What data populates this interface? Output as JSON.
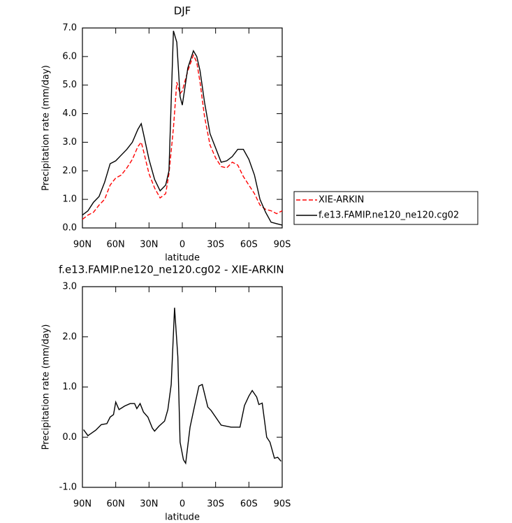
{
  "chart_data": [
    {
      "type": "line",
      "title": "DJF",
      "xlabel": "latitude",
      "ylabel": "Precipitation rate (mm/day)",
      "x": [
        90,
        85,
        80,
        75,
        70,
        65,
        60,
        55,
        50,
        45,
        40,
        37,
        35,
        30,
        25,
        20,
        15,
        12,
        8,
        5,
        2,
        0,
        -5,
        -10,
        -13,
        -16,
        -20,
        -25,
        -30,
        -35,
        -40,
        -45,
        -50,
        -55,
        -60,
        -65,
        -70,
        -75,
        -80,
        -85,
        -90
      ],
      "series": [
        {
          "name": "XIE-ARKIN",
          "color": "#ff0000",
          "dash": true,
          "values": [
            0.3,
            0.45,
            0.55,
            0.8,
            1.0,
            1.5,
            1.75,
            1.85,
            2.1,
            2.4,
            2.85,
            3.0,
            2.7,
            1.9,
            1.4,
            1.05,
            1.2,
            1.9,
            3.5,
            5.1,
            4.7,
            4.8,
            5.5,
            6.05,
            5.8,
            5.1,
            3.9,
            2.9,
            2.45,
            2.15,
            2.1,
            2.3,
            2.2,
            1.8,
            1.5,
            1.2,
            0.8,
            0.65,
            0.6,
            0.5,
            0.6
          ]
        },
        {
          "name": "f.e13.FAMIP.ne120_ne120.cg02",
          "color": "#000000",
          "dash": false,
          "values": [
            0.45,
            0.6,
            0.9,
            1.1,
            1.6,
            2.25,
            2.35,
            2.55,
            2.75,
            3.0,
            3.45,
            3.65,
            3.3,
            2.4,
            1.7,
            1.3,
            1.5,
            2.0,
            6.9,
            6.5,
            4.6,
            4.3,
            5.6,
            6.2,
            6.0,
            5.5,
            4.4,
            3.3,
            2.8,
            2.3,
            2.35,
            2.5,
            2.75,
            2.75,
            2.4,
            1.85,
            1.0,
            0.55,
            0.2,
            0.15,
            0.1
          ]
        }
      ],
      "xlim": [
        90,
        -90
      ],
      "xticks": [
        {
          "value": 90,
          "label": "90N"
        },
        {
          "value": 60,
          "label": "60N"
        },
        {
          "value": 30,
          "label": "30N"
        },
        0,
        {
          "value": -30,
          "label": "30S"
        },
        {
          "value": -60,
          "label": "60S"
        },
        {
          "value": -90,
          "label": "90S"
        }
      ],
      "ylim": [
        0,
        7
      ],
      "yticks": [
        {
          "value": 0,
          "label": "0.0"
        },
        {
          "value": 1,
          "label": "1.0"
        },
        {
          "value": 2,
          "label": "2.0"
        },
        {
          "value": 3,
          "label": "3.0"
        },
        {
          "value": 4,
          "label": "4.0"
        },
        {
          "value": 5,
          "label": "5.0"
        },
        {
          "value": 6,
          "label": "6.0"
        },
        {
          "value": 7,
          "label": "7.0"
        }
      ],
      "legend": "right"
    },
    {
      "type": "line",
      "title": "f.e13.FAMIP.ne120_ne120.cg02 - XIE-ARKIN",
      "xlabel": "latitude",
      "ylabel": "Precipitation rate (mm/day)",
      "x": [
        89,
        85,
        78,
        73,
        68,
        65,
        62,
        60,
        57,
        52,
        47,
        43,
        41,
        38,
        35,
        31,
        27,
        25,
        21,
        16,
        13,
        10,
        7,
        4,
        2,
        -1,
        -3,
        -7,
        -11,
        -15,
        -18,
        -23,
        -26,
        -35,
        -44,
        -52,
        -56,
        -60,
        -63,
        -67,
        -69,
        -72,
        -76,
        -79,
        -83,
        -86,
        -89
      ],
      "series": [
        {
          "name": null,
          "color": "#000000",
          "dash": false,
          "values": [
            0.15,
            0.03,
            0.14,
            0.25,
            0.27,
            0.4,
            0.45,
            0.7,
            0.55,
            0.62,
            0.67,
            0.67,
            0.57,
            0.67,
            0.5,
            0.4,
            0.18,
            0.12,
            0.22,
            0.32,
            0.55,
            1.05,
            2.58,
            1.6,
            -0.1,
            -0.45,
            -0.52,
            0.2,
            0.62,
            1.02,
            1.05,
            0.6,
            0.53,
            0.24,
            0.2,
            0.2,
            0.63,
            0.82,
            0.93,
            0.8,
            0.65,
            0.68,
            0.0,
            -0.1,
            -0.42,
            -0.4,
            -0.48
          ]
        }
      ],
      "xlim": [
        90,
        -90
      ],
      "xticks": [
        {
          "value": 90,
          "label": "90N"
        },
        {
          "value": 60,
          "label": "60N"
        },
        {
          "value": 30,
          "label": "30N"
        },
        0,
        {
          "value": -30,
          "label": "30S"
        },
        {
          "value": -60,
          "label": "60S"
        },
        {
          "value": -90,
          "label": "90S"
        }
      ],
      "ylim": [
        -1,
        3
      ],
      "yticks": [
        {
          "value": -1,
          "label": "-1.0"
        },
        {
          "value": 0,
          "label": "0.0"
        },
        {
          "value": 1,
          "label": "1.0"
        },
        {
          "value": 2,
          "label": "2.0"
        },
        {
          "value": 3,
          "label": "3.0"
        }
      ]
    }
  ]
}
